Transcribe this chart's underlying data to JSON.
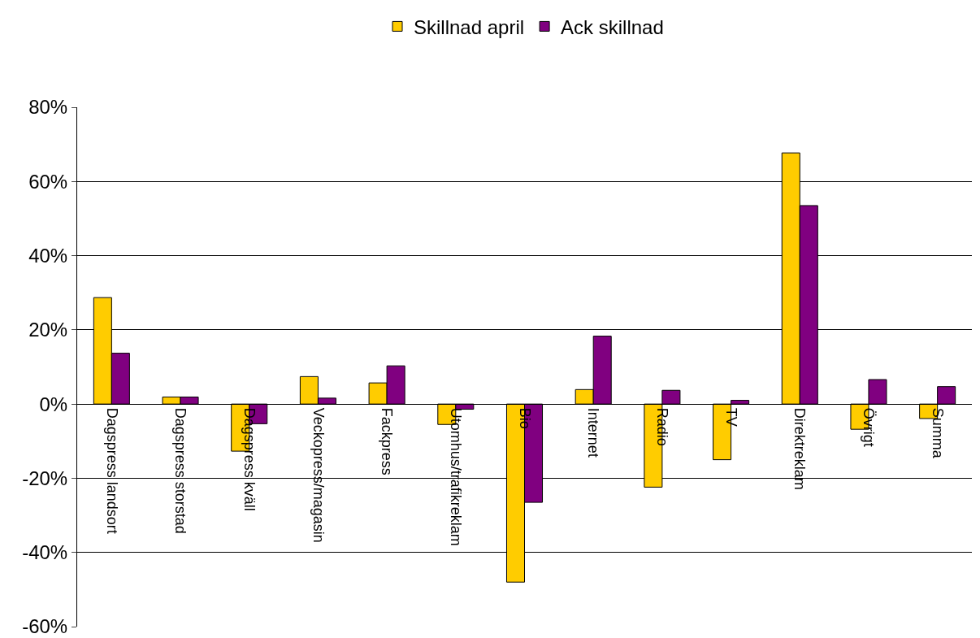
{
  "chart_data": {
    "type": "bar",
    "categories": [
      "Dagspress landsort",
      "Dagspress storstad",
      "Dagspress kväll",
      "Veckopress/magasin",
      "Fackpress",
      "Utomhus/trafikreklam",
      "Bio",
      "Internet",
      "Radio",
      "TV",
      "Direktreklam",
      "Övrigt",
      "Summa"
    ],
    "series": [
      {
        "name": "Skillnad april",
        "color": "#ffcc00",
        "values": [
          28.7,
          1.9,
          -12.7,
          7.4,
          5.7,
          -5.5,
          -48,
          3.9,
          -22.4,
          -15,
          67.7,
          -6.8,
          -3.9
        ]
      },
      {
        "name": "Ack skillnad",
        "color": "#800080",
        "values": [
          13.7,
          1.9,
          -5.3,
          1.6,
          10.3,
          -1.4,
          -26.5,
          18.3,
          3.7,
          1.0,
          53.5,
          6.6,
          4.7
        ]
      }
    ],
    "ylim": [
      -60,
      80
    ],
    "yticks": [
      {
        "value": -60,
        "label": "-60%"
      },
      {
        "value": -40,
        "label": "-40%"
      },
      {
        "value": -20,
        "label": "-20%"
      },
      {
        "value": 0,
        "label": "0%"
      },
      {
        "value": 20,
        "label": "20%"
      },
      {
        "value": 40,
        "label": "40%"
      },
      {
        "value": 60,
        "label": "60%"
      },
      {
        "value": 80,
        "label": "80%"
      }
    ],
    "grid": "y",
    "legend": "top"
  }
}
